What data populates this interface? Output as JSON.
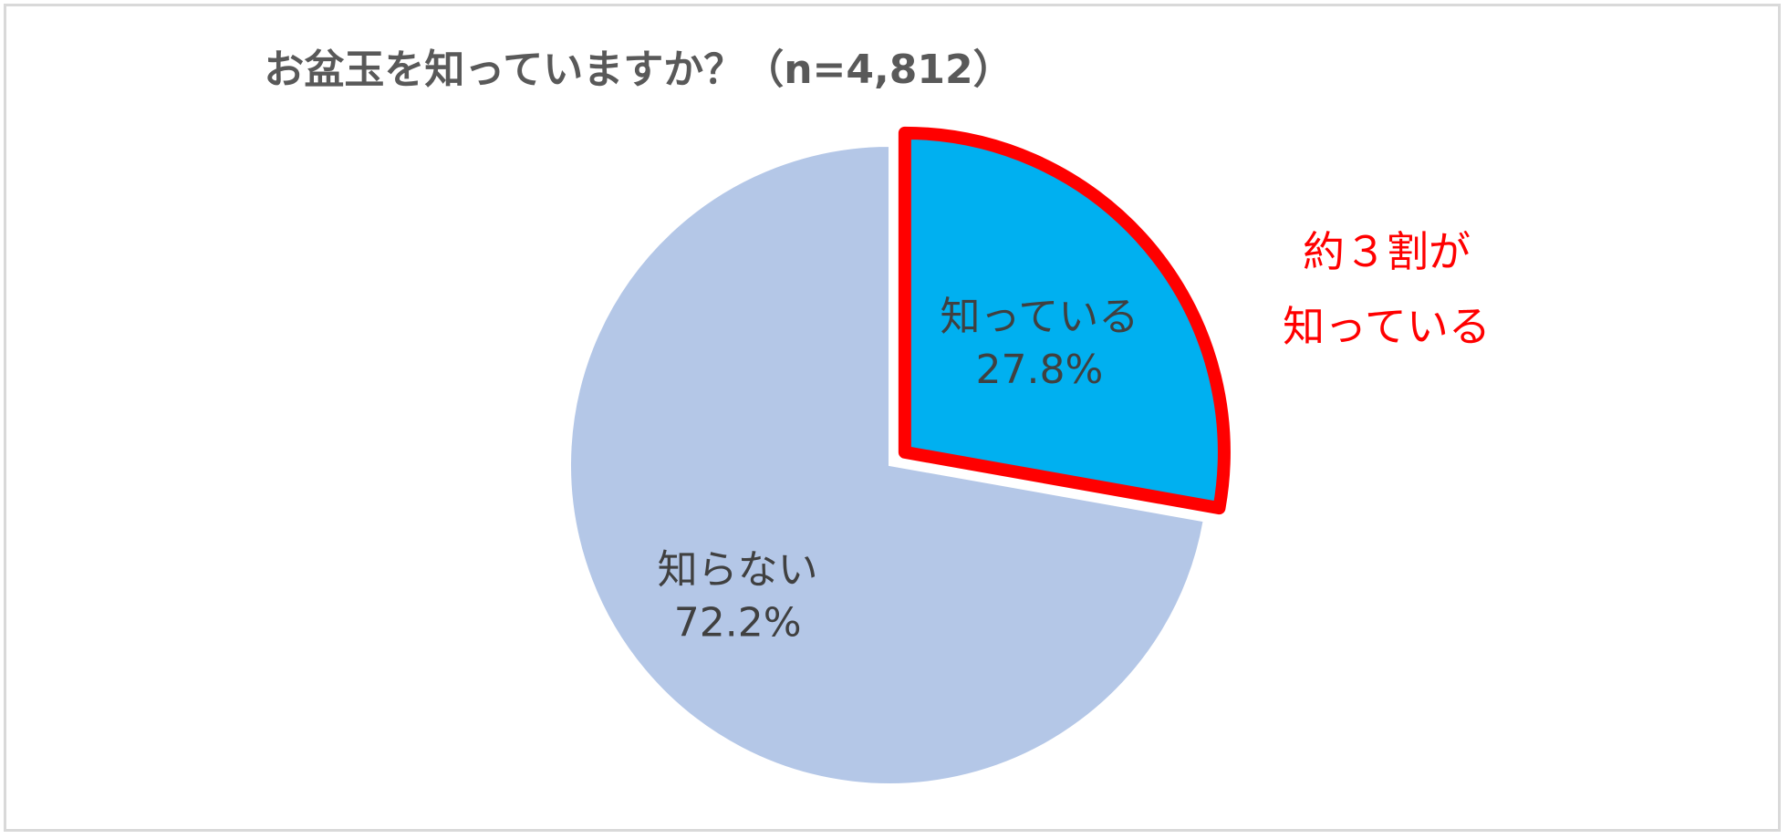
{
  "chart_data": {
    "type": "pie",
    "title": "お盆玉を知っていますか？（n=4,812）",
    "slices": [
      {
        "label": "知っている",
        "value": 27.8,
        "value_label": "27.8%",
        "color": "#00b0f0",
        "exploded": true,
        "outline": "#ff0000"
      },
      {
        "label": "知らない",
        "value": 72.2,
        "value_label": "72.2%",
        "color": "#b4c7e7",
        "exploded": false
      }
    ]
  },
  "annotation": {
    "line1": "約３割が",
    "line2": "知っている",
    "color": "#ff0000"
  }
}
